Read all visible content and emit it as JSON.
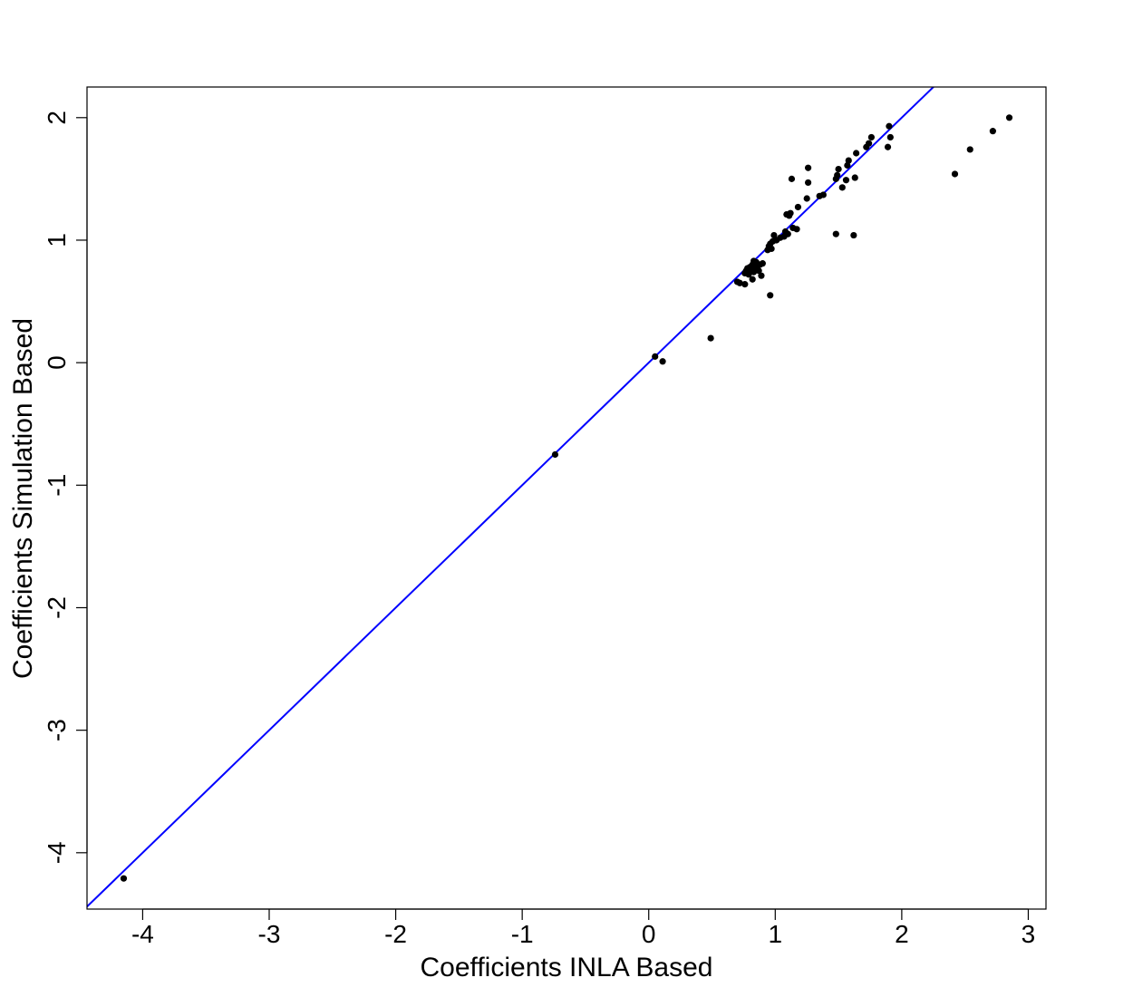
{
  "chart_data": {
    "type": "scatter",
    "title": "",
    "xlabel": "Coefficients INLA Based",
    "ylabel": "Coefficients Simulation Based",
    "xlim": [
      -4.44,
      3.14
    ],
    "ylim": [
      -4.46,
      2.25
    ],
    "xticks": [
      -4,
      -3,
      -2,
      -1,
      0,
      1,
      2,
      3
    ],
    "yticks": [
      -4,
      -3,
      -2,
      -1,
      0,
      1,
      2
    ],
    "grid": false,
    "legend": "none",
    "point_color": "#000000",
    "line_color": "#0000ff",
    "reference_line": {
      "intercept": 0,
      "slope": 1
    },
    "points": [
      [
        -4.15,
        -4.21
      ],
      [
        -0.74,
        -0.75
      ],
      [
        0.05,
        0.05
      ],
      [
        0.11,
        0.01
      ],
      [
        0.49,
        0.2
      ],
      [
        0.7,
        0.66
      ],
      [
        0.72,
        0.65
      ],
      [
        0.76,
        0.64
      ],
      [
        0.76,
        0.73
      ],
      [
        0.77,
        0.75
      ],
      [
        0.78,
        0.77
      ],
      [
        0.79,
        0.72
      ],
      [
        0.8,
        0.78
      ],
      [
        0.81,
        0.76
      ],
      [
        0.82,
        0.8
      ],
      [
        0.82,
        0.68
      ],
      [
        0.83,
        0.74
      ],
      [
        0.84,
        0.77
      ],
      [
        0.85,
        0.82
      ],
      [
        0.86,
        0.79
      ],
      [
        0.87,
        0.75
      ],
      [
        0.88,
        0.8
      ],
      [
        0.89,
        0.71
      ],
      [
        0.9,
        0.81
      ],
      [
        0.83,
        0.83
      ],
      [
        0.96,
        0.55
      ],
      [
        0.94,
        0.92
      ],
      [
        0.95,
        0.95
      ],
      [
        0.96,
        0.97
      ],
      [
        0.97,
        0.93
      ],
      [
        0.98,
        0.99
      ],
      [
        0.99,
        1.04
      ],
      [
        1.01,
        1.0
      ],
      [
        1.04,
        1.02
      ],
      [
        1.07,
        1.03
      ],
      [
        1.08,
        1.07
      ],
      [
        1.09,
        1.21
      ],
      [
        1.1,
        1.05
      ],
      [
        1.11,
        1.2
      ],
      [
        1.12,
        1.22
      ],
      [
        1.13,
        1.5
      ],
      [
        1.14,
        1.1
      ],
      [
        1.17,
        1.09
      ],
      [
        1.18,
        1.27
      ],
      [
        1.25,
        1.34
      ],
      [
        1.26,
        1.47
      ],
      [
        1.26,
        1.59
      ],
      [
        1.35,
        1.36
      ],
      [
        1.38,
        1.37
      ],
      [
        1.48,
        1.05
      ],
      [
        1.48,
        1.5
      ],
      [
        1.49,
        1.53
      ],
      [
        1.5,
        1.58
      ],
      [
        1.53,
        1.43
      ],
      [
        1.56,
        1.49
      ],
      [
        1.57,
        1.61
      ],
      [
        1.58,
        1.65
      ],
      [
        1.62,
        1.04
      ],
      [
        1.63,
        1.51
      ],
      [
        1.64,
        1.71
      ],
      [
        1.72,
        1.76
      ],
      [
        1.74,
        1.79
      ],
      [
        1.76,
        1.84
      ],
      [
        1.89,
        1.76
      ],
      [
        1.9,
        1.93
      ],
      [
        1.91,
        1.84
      ],
      [
        2.42,
        1.54
      ],
      [
        2.54,
        1.74
      ],
      [
        2.72,
        1.89
      ],
      [
        2.85,
        2.0
      ]
    ]
  }
}
